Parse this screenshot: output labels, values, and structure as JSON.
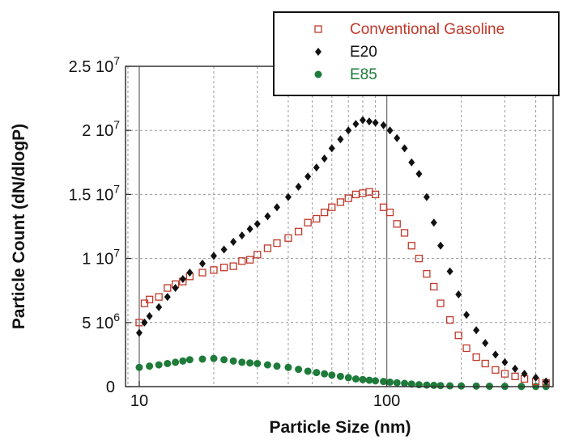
{
  "chart_data": {
    "type": "scatter",
    "xlabel": "Particle Size (nm)",
    "ylabel": "Particle Count (dN/dlogP)",
    "x_scale": "log",
    "xlim": [
      8.8,
      470
    ],
    "ylim": [
      0,
      25000000
    ],
    "grid": true,
    "legend_position": "top-right",
    "x_ticks": [
      {
        "value": 10,
        "label": "10"
      },
      {
        "value": 100,
        "label": "100"
      }
    ],
    "y_ticks": [
      {
        "value": 0,
        "mantissa": "0",
        "exp": ""
      },
      {
        "value": 5000000,
        "mantissa": "5 10",
        "exp": "6"
      },
      {
        "value": 10000000,
        "mantissa": "1 10",
        "exp": "7"
      },
      {
        "value": 15000000,
        "mantissa": "1.5 10",
        "exp": "7"
      },
      {
        "value": 20000000,
        "mantissa": "2 10",
        "exp": "7"
      },
      {
        "value": 25000000,
        "mantissa": "2.5 10",
        "exp": "7"
      }
    ],
    "series": [
      {
        "name": "Conventional Gasoline",
        "color": "#c0392b",
        "marker": "open-square",
        "points": [
          [
            10,
            5000000
          ],
          [
            10.5,
            6500000
          ],
          [
            11,
            6800000
          ],
          [
            12,
            7000000
          ],
          [
            13,
            7700000
          ],
          [
            14,
            8000000
          ],
          [
            15,
            8200000
          ],
          [
            16,
            8600000
          ],
          [
            18,
            8900000
          ],
          [
            20,
            9100000
          ],
          [
            22,
            9300000
          ],
          [
            24,
            9400000
          ],
          [
            26,
            9800000
          ],
          [
            28,
            9900000
          ],
          [
            30,
            10300000
          ],
          [
            33,
            10800000
          ],
          [
            36,
            11200000
          ],
          [
            40,
            11600000
          ],
          [
            44,
            12100000
          ],
          [
            48,
            12800000
          ],
          [
            52,
            13100000
          ],
          [
            56,
            13600000
          ],
          [
            60,
            14000000
          ],
          [
            65,
            14400000
          ],
          [
            70,
            14700000
          ],
          [
            75,
            15000000
          ],
          [
            80,
            15100000
          ],
          [
            85,
            15200000
          ],
          [
            90,
            15000000
          ],
          [
            97,
            14000000
          ],
          [
            103,
            13600000
          ],
          [
            110,
            12700000
          ],
          [
            118,
            12000000
          ],
          [
            126,
            11000000
          ],
          [
            135,
            10000000
          ],
          [
            145,
            8800000
          ],
          [
            155,
            7800000
          ],
          [
            165,
            6500000
          ],
          [
            180,
            5200000
          ],
          [
            195,
            4000000
          ],
          [
            210,
            3000000
          ],
          [
            230,
            2300000
          ],
          [
            250,
            1800000
          ],
          [
            275,
            1300000
          ],
          [
            300,
            1000000
          ],
          [
            330,
            800000
          ],
          [
            360,
            600000
          ],
          [
            400,
            400000
          ],
          [
            440,
            300000
          ]
        ]
      },
      {
        "name": "E20",
        "color": "#111111",
        "marker": "filled-diamond",
        "points": [
          [
            10,
            4200000
          ],
          [
            10.5,
            5000000
          ],
          [
            11,
            5500000
          ],
          [
            12,
            6200000
          ],
          [
            13,
            7000000
          ],
          [
            14,
            7700000
          ],
          [
            15,
            8400000
          ],
          [
            16,
            8900000
          ],
          [
            18,
            9600000
          ],
          [
            20,
            10200000
          ],
          [
            22,
            10700000
          ],
          [
            24,
            11300000
          ],
          [
            26,
            11800000
          ],
          [
            28,
            12300000
          ],
          [
            30,
            12700000
          ],
          [
            33,
            13300000
          ],
          [
            36,
            14000000
          ],
          [
            40,
            14800000
          ],
          [
            44,
            15600000
          ],
          [
            48,
            16400000
          ],
          [
            52,
            17100000
          ],
          [
            56,
            17800000
          ],
          [
            60,
            18600000
          ],
          [
            65,
            19300000
          ],
          [
            70,
            20000000
          ],
          [
            75,
            20500000
          ],
          [
            80,
            20800000
          ],
          [
            85,
            20700000
          ],
          [
            90,
            20600000
          ],
          [
            97,
            20400000
          ],
          [
            103,
            20000000
          ],
          [
            110,
            19400000
          ],
          [
            118,
            18600000
          ],
          [
            126,
            17500000
          ],
          [
            135,
            16600000
          ],
          [
            145,
            14800000
          ],
          [
            155,
            12800000
          ],
          [
            165,
            11000000
          ],
          [
            180,
            9000000
          ],
          [
            195,
            7200000
          ],
          [
            210,
            5600000
          ],
          [
            230,
            4400000
          ],
          [
            250,
            3400000
          ],
          [
            275,
            2500000
          ],
          [
            300,
            1900000
          ],
          [
            330,
            1400000
          ],
          [
            360,
            1000000
          ],
          [
            400,
            700000
          ],
          [
            440,
            400000
          ]
        ]
      },
      {
        "name": "E85",
        "color": "#1e7b3a",
        "marker": "filled-circle",
        "points": [
          [
            10,
            1500000
          ],
          [
            11,
            1600000
          ],
          [
            12,
            1700000
          ],
          [
            13,
            1800000
          ],
          [
            14,
            1900000
          ],
          [
            15,
            2000000
          ],
          [
            16,
            2100000
          ],
          [
            18,
            2150000
          ],
          [
            20,
            2200000
          ],
          [
            22,
            2100000
          ],
          [
            24,
            2000000
          ],
          [
            26,
            1900000
          ],
          [
            28,
            1850000
          ],
          [
            30,
            1800000
          ],
          [
            33,
            1700000
          ],
          [
            36,
            1600000
          ],
          [
            40,
            1500000
          ],
          [
            44,
            1350000
          ],
          [
            48,
            1200000
          ],
          [
            52,
            1100000
          ],
          [
            56,
            1000000
          ],
          [
            60,
            900000
          ],
          [
            65,
            800000
          ],
          [
            70,
            700000
          ],
          [
            75,
            600000
          ],
          [
            80,
            550000
          ],
          [
            85,
            500000
          ],
          [
            90,
            450000
          ],
          [
            97,
            400000
          ],
          [
            103,
            350000
          ],
          [
            110,
            300000
          ],
          [
            118,
            250000
          ],
          [
            126,
            200000
          ],
          [
            135,
            150000
          ],
          [
            145,
            120000
          ],
          [
            155,
            100000
          ],
          [
            165,
            80000
          ],
          [
            180,
            60000
          ],
          [
            200,
            50000
          ],
          [
            230,
            40000
          ],
          [
            260,
            30000
          ],
          [
            300,
            20000
          ],
          [
            350,
            15000
          ],
          [
            400,
            10000
          ],
          [
            440,
            8000
          ]
        ]
      }
    ]
  }
}
